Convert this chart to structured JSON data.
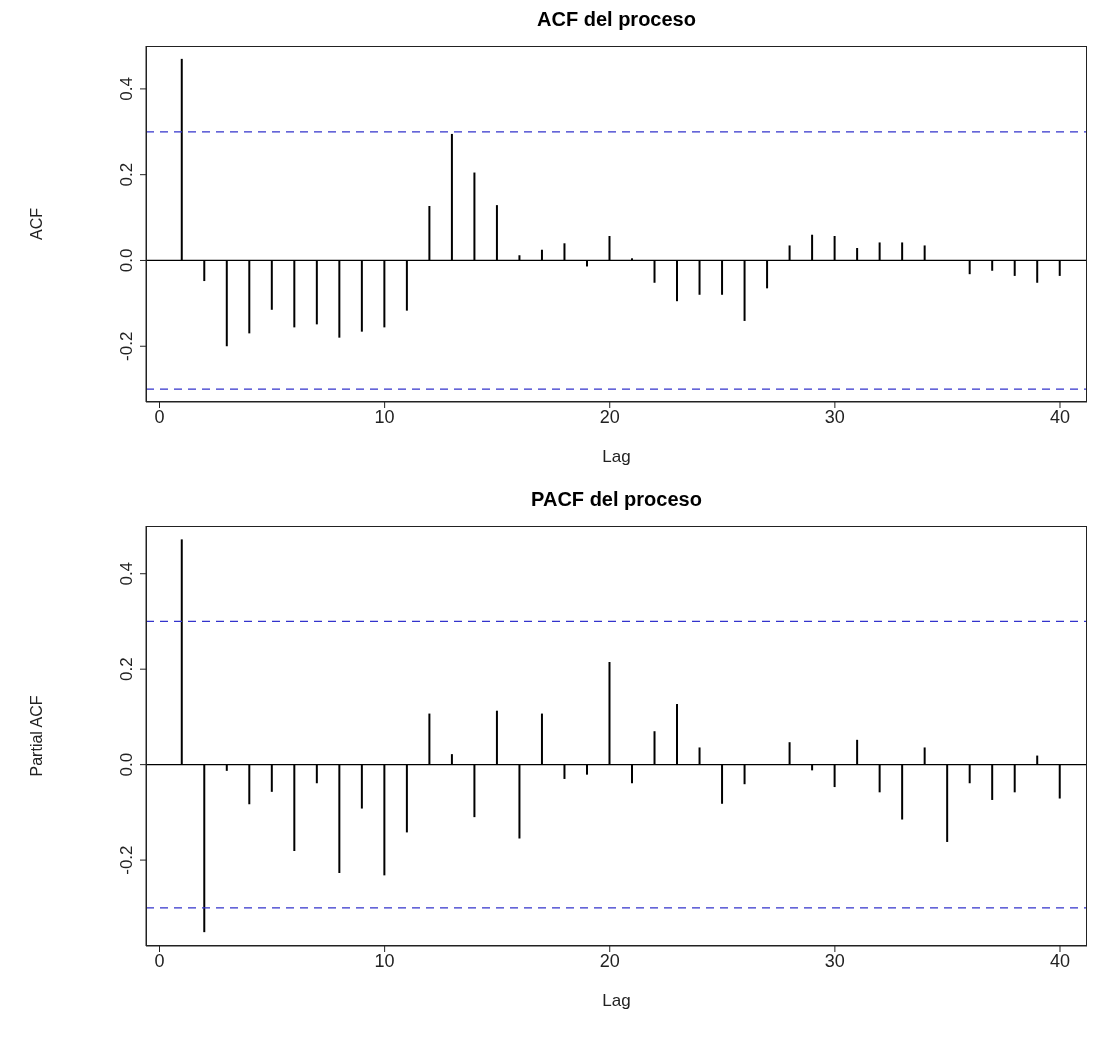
{
  "chart_data": [
    {
      "type": "bar",
      "title": "ACF del proceso",
      "xlabel": "Lag",
      "ylabel": "ACF",
      "x": [
        1,
        2,
        3,
        4,
        5,
        6,
        7,
        8,
        9,
        10,
        11,
        12,
        13,
        14,
        15,
        16,
        17,
        18,
        19,
        20,
        21,
        22,
        23,
        24,
        25,
        26,
        27,
        28,
        29,
        30,
        31,
        32,
        33,
        34,
        35,
        36,
        37,
        38,
        39,
        40
      ],
      "values": [
        0.47,
        -0.048,
        -0.2,
        -0.17,
        -0.115,
        -0.156,
        -0.149,
        -0.18,
        -0.166,
        -0.156,
        -0.117,
        0.127,
        0.295,
        0.205,
        0.129,
        0.012,
        0.025,
        0.04,
        -0.014,
        0.057,
        0.005,
        -0.052,
        -0.095,
        -0.08,
        -0.08,
        -0.141,
        -0.065,
        0.035,
        0.06,
        0.057,
        0.029,
        0.042,
        0.042,
        0.035,
        null,
        -0.032,
        -0.024,
        -0.036,
        -0.052,
        -0.036
      ],
      "color": "#000000",
      "xlim": [
        -0.6,
        41.2
      ],
      "xticks": [
        0,
        10,
        20,
        30,
        40
      ],
      "ylim": [
        -0.33,
        0.5
      ],
      "yticks": [
        -0.2,
        {
          "value": 0,
          "label": "0.0"
        },
        0.2,
        0.4
      ],
      "ref_lines": [
        {
          "axis": "y",
          "value": 0.3,
          "color": "#3333cc",
          "line_style": "dashed"
        },
        {
          "axis": "y",
          "value": -0.3,
          "color": "#3333cc",
          "line_style": "dashed"
        },
        {
          "axis": "y",
          "value": 0,
          "color": "#000000",
          "line_style": "solid"
        }
      ]
    },
    {
      "type": "bar",
      "title": "PACF del proceso",
      "xlabel": "Lag",
      "ylabel": "Partial ACF",
      "x": [
        1,
        2,
        3,
        4,
        5,
        6,
        7,
        8,
        9,
        10,
        11,
        12,
        13,
        14,
        15,
        16,
        17,
        18,
        19,
        20,
        21,
        22,
        23,
        24,
        25,
        26,
        27,
        28,
        29,
        30,
        31,
        32,
        33,
        34,
        35,
        36,
        37,
        38,
        39,
        40
      ],
      "values": [
        0.472,
        -0.351,
        -0.013,
        -0.083,
        -0.057,
        -0.181,
        -0.039,
        -0.227,
        -0.092,
        -0.232,
        -0.142,
        0.107,
        0.022,
        -0.11,
        0.113,
        -0.155,
        0.107,
        -0.03,
        -0.021,
        0.215,
        -0.039,
        0.07,
        0.127,
        0.036,
        -0.082,
        -0.041,
        null,
        0.047,
        -0.012,
        -0.047,
        0.052,
        -0.058,
        -0.115,
        0.036,
        -0.162,
        -0.039,
        -0.074,
        -0.058,
        0.019,
        -0.071
      ],
      "color": "#000000",
      "xlim": [
        -0.6,
        41.2
      ],
      "xticks": [
        0,
        10,
        20,
        30,
        40
      ],
      "ylim": [
        -0.38,
        0.5
      ],
      "yticks": [
        -0.2,
        {
          "value": 0,
          "label": "0.0"
        },
        0.2,
        0.4
      ],
      "ref_lines": [
        {
          "axis": "y",
          "value": 0.3,
          "color": "#3333cc",
          "line_style": "dashed"
        },
        {
          "axis": "y",
          "value": -0.3,
          "color": "#3333cc",
          "line_style": "dashed"
        },
        {
          "axis": "y",
          "value": 0,
          "color": "#000000",
          "line_style": "solid"
        }
      ]
    }
  ]
}
